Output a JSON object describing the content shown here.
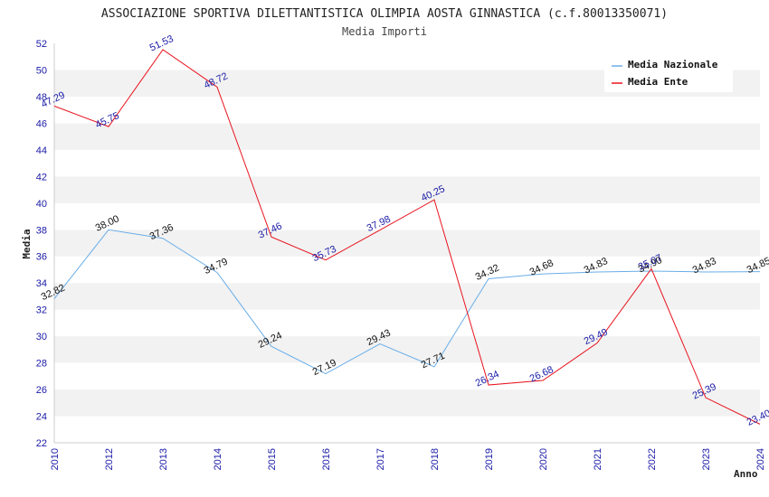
{
  "chart_data": {
    "type": "line",
    "title": "ASSOCIAZIONE SPORTIVA DILETTANTISTICA OLIMPIA AOSTA GINNASTICA (c.f.80013350071)",
    "subtitle": "Media Importi",
    "xlabel": "Anno",
    "ylabel": "Media",
    "ylim": [
      22,
      52
    ],
    "yticks": [
      "22",
      "24",
      "26",
      "28",
      "30",
      "32",
      "34",
      "36",
      "38",
      "40",
      "42",
      "44",
      "46",
      "48",
      "50",
      "52"
    ],
    "x": [
      "2010",
      "2012",
      "2013",
      "2014",
      "2015",
      "2016",
      "2017",
      "2018",
      "2019",
      "2020",
      "2021",
      "2022",
      "2023",
      "2024"
    ],
    "legend_position": "top-right",
    "series": [
      {
        "name": "Media Nazionale",
        "color": "#6aaee8",
        "values": [
          32.82,
          38.0,
          37.36,
          34.79,
          29.24,
          27.19,
          29.43,
          27.71,
          34.32,
          34.68,
          34.83,
          34.9,
          34.83,
          34.85
        ],
        "labels": [
          "32.82",
          "38.00",
          "37.36",
          "34.79",
          "29.24",
          "27.19",
          "29.43",
          "27.71",
          "34.32",
          "34.68",
          "34.83",
          "34.90",
          "34.83",
          "34.85"
        ]
      },
      {
        "name": "Media Ente",
        "color": "#e8141e",
        "values": [
          47.29,
          45.75,
          51.53,
          48.72,
          37.46,
          35.73,
          37.98,
          40.25,
          26.34,
          26.68,
          29.49,
          35.07,
          25.39,
          23.4
        ],
        "labels": [
          "47.29",
          "45.75",
          "51.53",
          "48.72",
          "37.46",
          "35.73",
          "37.98",
          "40.25",
          "26.34",
          "26.68",
          "29.49",
          "35.07",
          "25.39",
          "23.40"
        ]
      }
    ]
  }
}
